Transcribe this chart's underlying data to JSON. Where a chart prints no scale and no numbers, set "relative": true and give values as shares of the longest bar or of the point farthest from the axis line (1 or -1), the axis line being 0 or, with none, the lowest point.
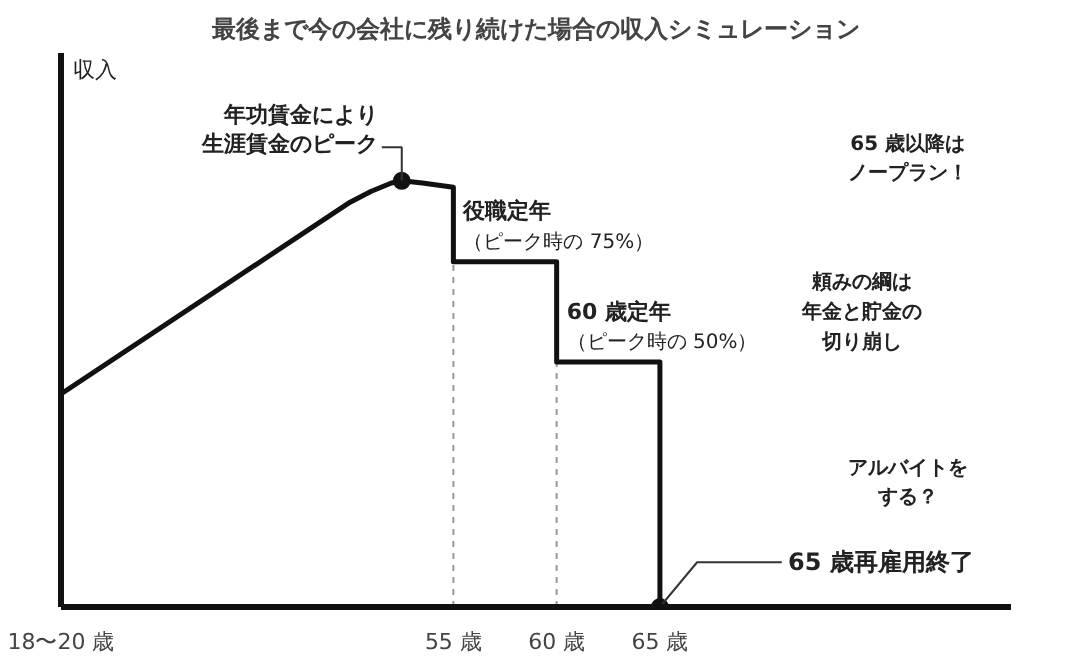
{
  "chart_data": {
    "type": "line",
    "title": "最後まで今の会社に残り続けた場合の収入シミュレーション",
    "ylabel": "収入",
    "relative": true,
    "xlim": [
      36,
      82
    ],
    "xticks": [
      {
        "value": 36,
        "label": "18〜20 歳"
      },
      {
        "value": 55,
        "label": "55 歳"
      },
      {
        "value": 60,
        "label": "60 歳"
      },
      {
        "value": 65,
        "label": "65 歳"
      }
    ],
    "series": [
      {
        "color": "#111111",
        "x": [
          36,
          50,
          51,
          52,
          52.5,
          53.5,
          55,
          55,
          60,
          60,
          65,
          65
        ],
        "values": [
          0.5,
          0.95,
          0.975,
          0.995,
          1,
          0.995,
          0.985,
          0.81,
          0.81,
          0.575,
          0.575,
          0
        ]
      },
      {
        "type": "scatter",
        "color": "#111111",
        "marker": "circle",
        "x": [
          52.5,
          65
        ],
        "values": [
          1,
          0
        ]
      }
    ],
    "ref_lines": [
      {
        "axis": "x",
        "value": 55,
        "label": null,
        "color": "#999999",
        "line_style": "dashed"
      },
      {
        "axis": "x",
        "value": 60,
        "label": null,
        "color": "#999999",
        "line_style": "dashed"
      }
    ],
    "grid": false,
    "tick_labels": "x",
    "annotations": [
      {
        "text": "年功賃金により生涯賃金のピーク",
        "x": 52.5,
        "y": 1
      },
      {
        "text": "役職定年（ピーク時の 75%）",
        "x": 55,
        "y": 0.81
      },
      {
        "text": "60 歳定年（ピーク時の 50%）",
        "x": 60,
        "y": 0.575
      },
      {
        "text": "65 歳再雇用終了",
        "x": 65,
        "y": 0
      },
      "65 歳以降はノープラン！",
      "頼みの綱は年金と貯金の切り崩し",
      "アルバイトをする？"
    ]
  }
}
